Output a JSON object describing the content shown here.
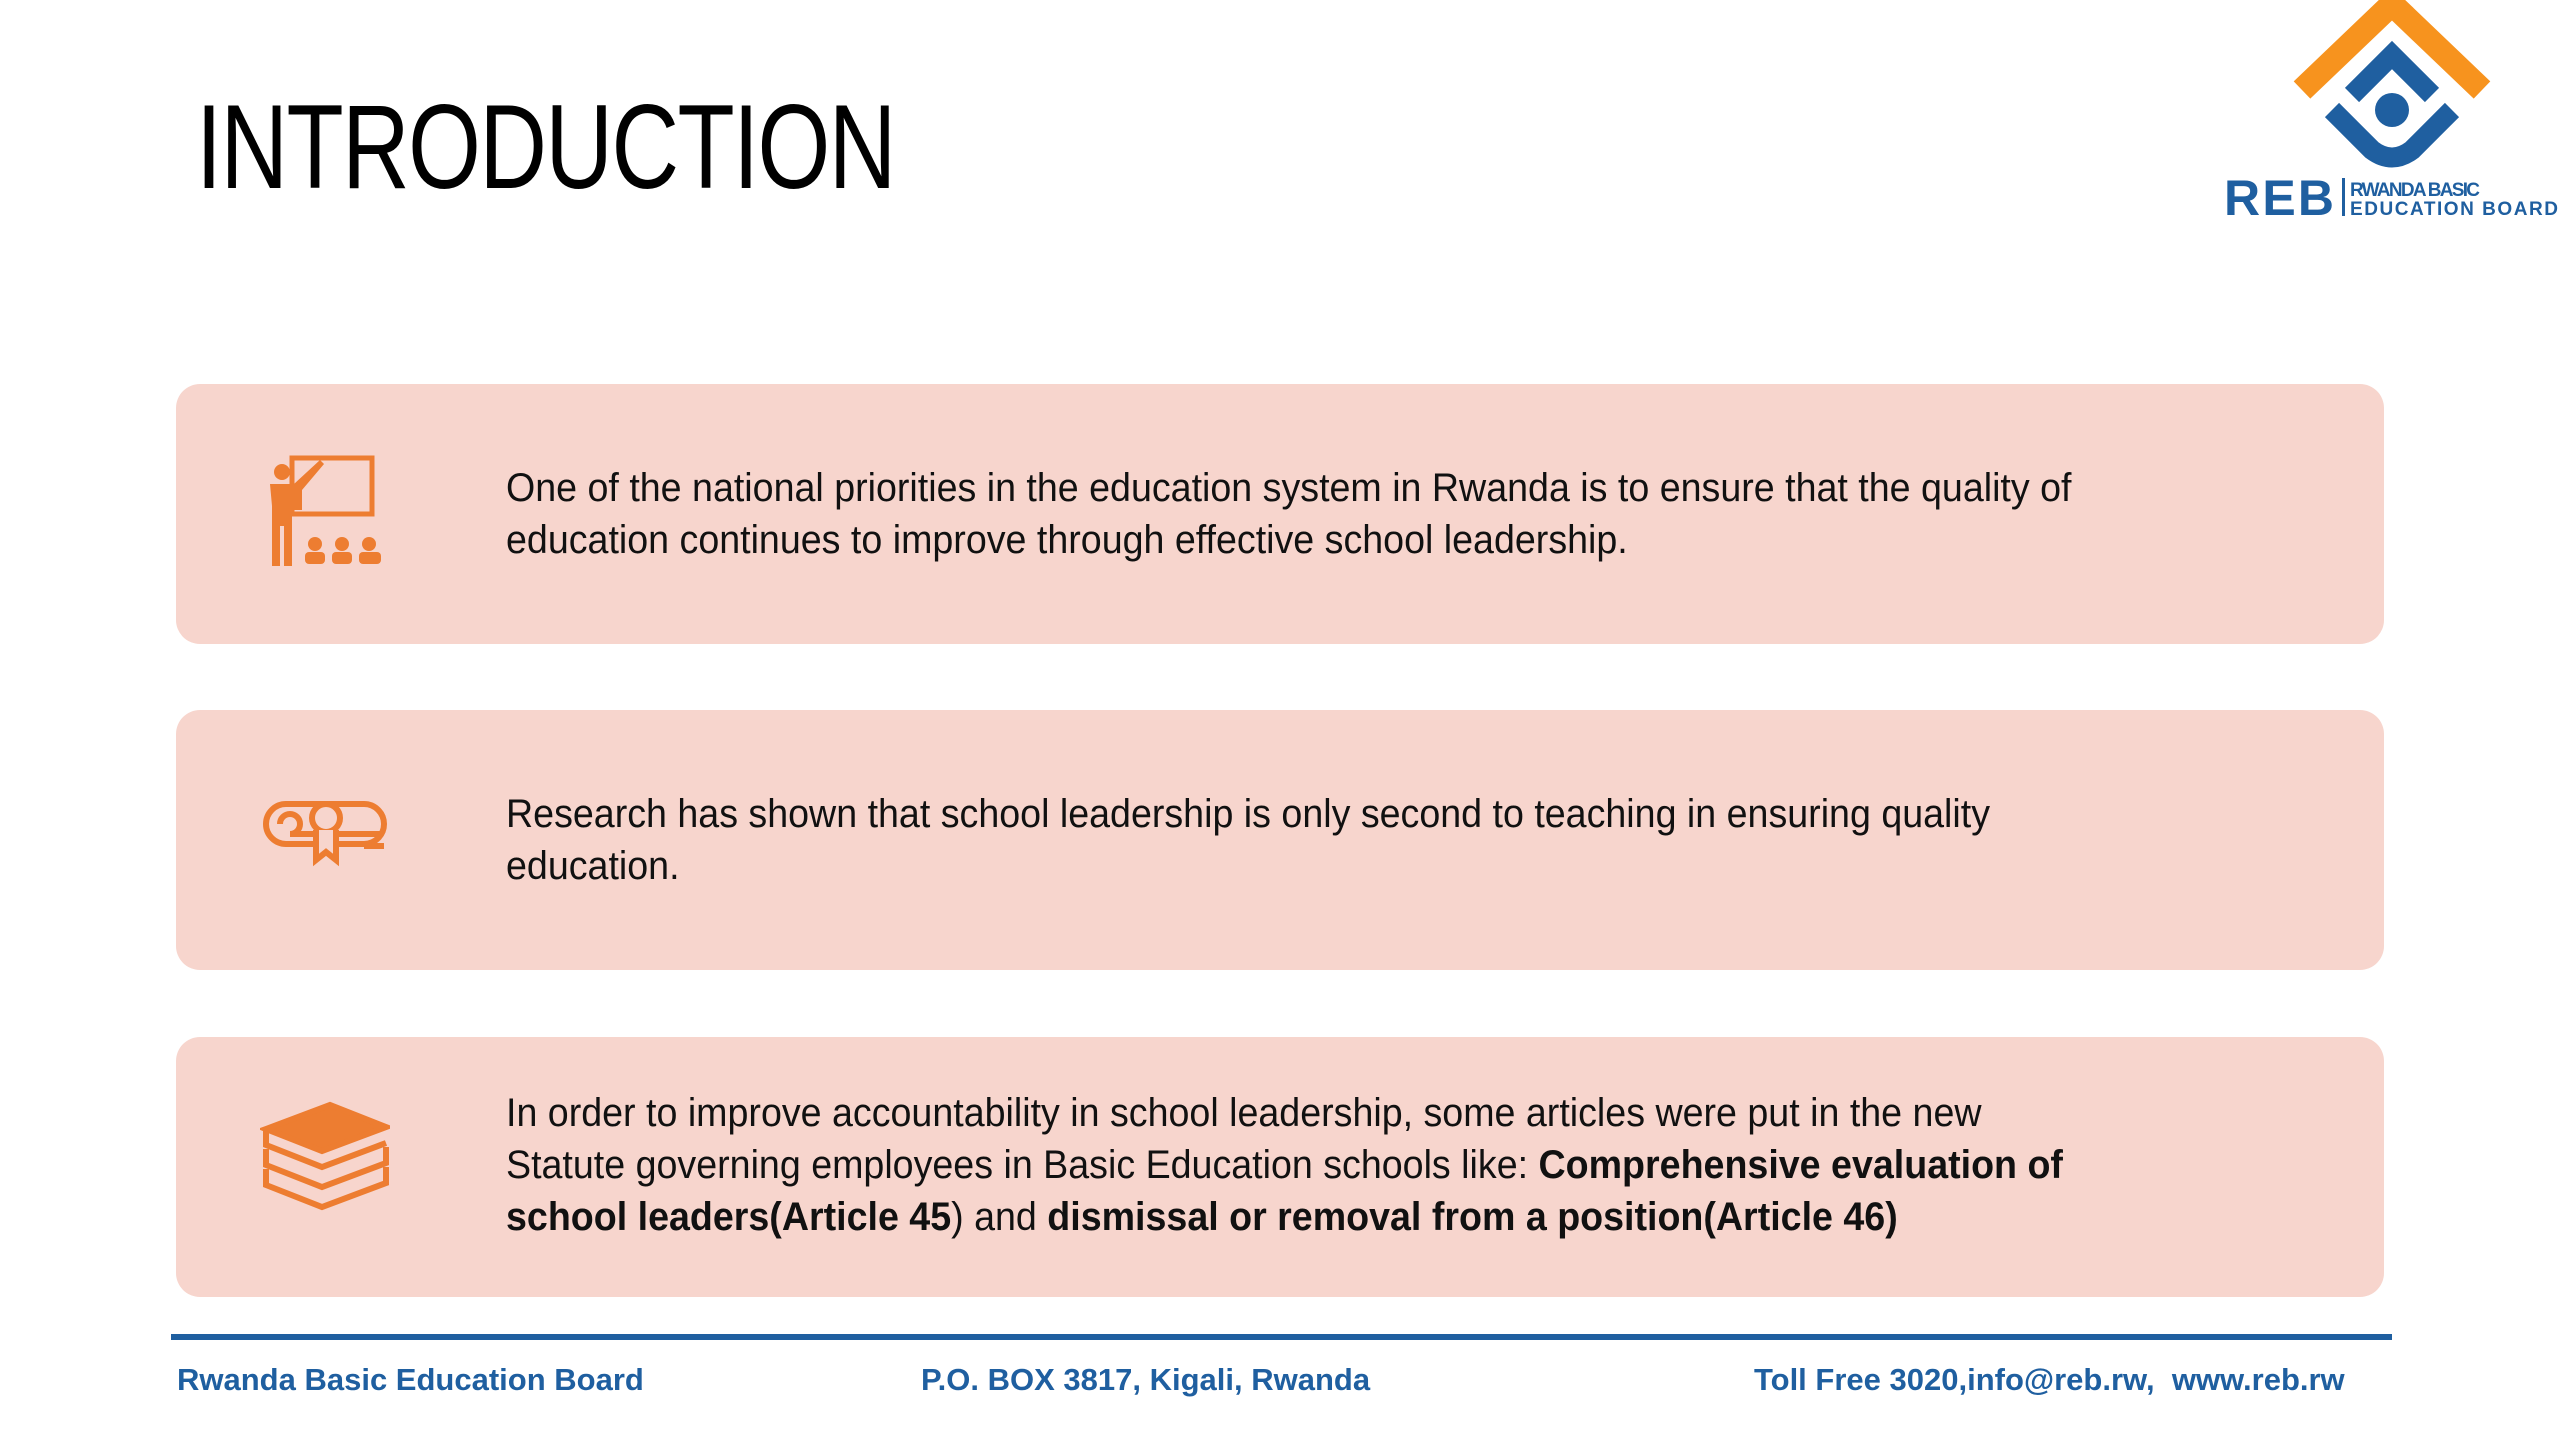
{
  "title": "INTRODUCTION",
  "logo": {
    "mark": "REB",
    "name_line1": "RWANDA BASIC",
    "name_line2": "EDUCATION BOARD",
    "colors": {
      "orange": "#f7931e",
      "blue": "#1f5fa0"
    }
  },
  "accent_color": "#ed7d31",
  "card_color": "#f7d5cd",
  "cards": [
    {
      "icon": "teacher-presentation-icon",
      "lines": [
        "One of the national priorities in the education system in Rwanda is to ensure that the quality of",
        "education continues to improve through effective school leadership."
      ]
    },
    {
      "icon": "diploma-certificate-icon",
      "lines": [
        "Research has shown that school leadership is only second to teaching in ensuring quality",
        "education."
      ]
    },
    {
      "icon": "books-stack-icon",
      "line1": "In order to improve accountability in school leadership, some articles were put in the new",
      "line2_plain": "Statute governing employees in Basic Education schools like: ",
      "line2_bold": "Comprehensive evaluation of",
      "line3_bold1": "school leaders(Article 45",
      "line3_plain": ") and ",
      "line3_bold2": "dismissal or removal from a position(Article 46)"
    }
  ],
  "footer": {
    "org": "Rwanda Basic Education Board",
    "address": "P.O. BOX 3817, Kigali, Rwanda",
    "contact": "Toll Free 3020,info@reb.rw,  www.reb.rw"
  }
}
